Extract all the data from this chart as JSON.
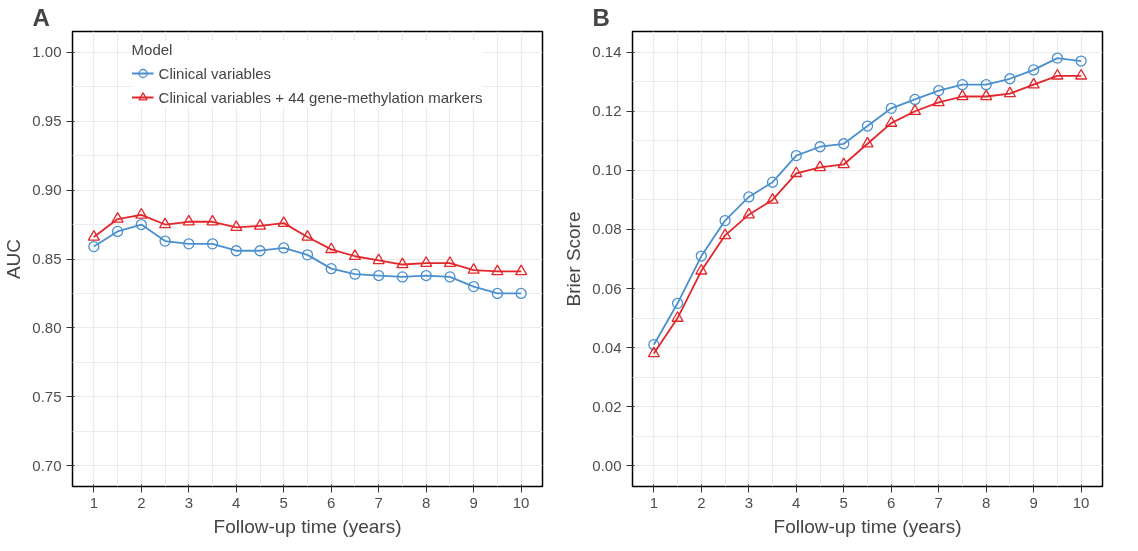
{
  "chart_data": [
    {
      "type": "line",
      "annotations": [
        "A"
      ],
      "xlabel": "Follow-up time (years)",
      "ylabel": "AUC",
      "legend_title": "Model",
      "legend": "top",
      "grid": true,
      "x": [
        1,
        1.5,
        2,
        2.5,
        3,
        3.5,
        4,
        4.5,
        5,
        5.5,
        6,
        6.5,
        7,
        7.5,
        8,
        8.5,
        9,
        9.5,
        10
      ],
      "xlim": [
        0.55,
        10.45
      ],
      "xticks": [
        1,
        2,
        3,
        4,
        5,
        6,
        7,
        8,
        9,
        10
      ],
      "ylim": [
        0.685,
        1.015
      ],
      "yticks": [
        {
          "value": 0.7,
          "label": "0.70"
        },
        {
          "value": 0.75,
          "label": "0.75"
        },
        {
          "value": 0.8,
          "label": "0.80"
        },
        {
          "value": 0.85,
          "label": "0.85"
        },
        {
          "value": 0.9,
          "label": "0.90"
        },
        {
          "value": 0.95,
          "label": "0.95"
        },
        {
          "value": 1.0,
          "label": "1.00"
        }
      ],
      "series": [
        {
          "name": "Clinical variables",
          "color": "#4a90cf",
          "marker": "circle",
          "values": [
            0.859,
            0.87,
            0.875,
            0.863,
            0.861,
            0.861,
            0.856,
            0.856,
            0.858,
            0.853,
            0.843,
            0.839,
            0.838,
            0.837,
            0.838,
            0.837,
            0.83,
            0.825,
            0.825
          ]
        },
        {
          "name": "Clinical variables + 44 gene-methylation markers",
          "color": "#e3262b",
          "marker": "triangle",
          "values": [
            0.866,
            0.879,
            0.882,
            0.875,
            0.877,
            0.877,
            0.873,
            0.874,
            0.876,
            0.866,
            0.857,
            0.852,
            0.849,
            0.846,
            0.847,
            0.847,
            0.842,
            0.841,
            0.841
          ]
        }
      ]
    },
    {
      "type": "line",
      "annotations": [
        "B"
      ],
      "xlabel": "Follow-up time (years)",
      "ylabel": "Brier Score",
      "grid": true,
      "x": [
        1,
        1.5,
        2,
        2.5,
        3,
        3.5,
        4,
        4.5,
        5,
        5.5,
        6,
        6.5,
        7,
        7.5,
        8,
        8.5,
        9,
        9.5,
        10
      ],
      "xlim": [
        0.55,
        10.45
      ],
      "xticks": [
        1,
        2,
        3,
        4,
        5,
        6,
        7,
        8,
        9,
        10
      ],
      "ylim": [
        -0.007,
        0.147
      ],
      "yticks": [
        {
          "value": 0,
          "label": "0.00"
        },
        {
          "value": 0.02,
          "label": "0.02"
        },
        {
          "value": 0.04,
          "label": "0.04"
        },
        {
          "value": 0.06,
          "label": "0.06"
        },
        {
          "value": 0.08,
          "label": "0.08"
        },
        {
          "value": 0.1,
          "label": "0.10"
        },
        {
          "value": 0.12,
          "label": "0.12"
        },
        {
          "value": 0.14,
          "label": "0.14"
        }
      ],
      "series": [
        {
          "color": "#4a90cf",
          "marker": "circle",
          "values": [
            0.041,
            0.055,
            0.071,
            0.083,
            0.091,
            0.096,
            0.105,
            0.108,
            0.109,
            0.115,
            0.121,
            0.124,
            0.127,
            0.129,
            0.129,
            0.131,
            0.134,
            0.138,
            0.137
          ]
        },
        {
          "color": "#e3262b",
          "marker": "triangle",
          "values": [
            0.038,
            0.05,
            0.066,
            0.078,
            0.085,
            0.09,
            0.099,
            0.101,
            0.102,
            0.109,
            0.116,
            0.12,
            0.123,
            0.125,
            0.125,
            0.126,
            0.129,
            0.132,
            0.132
          ]
        }
      ]
    }
  ]
}
